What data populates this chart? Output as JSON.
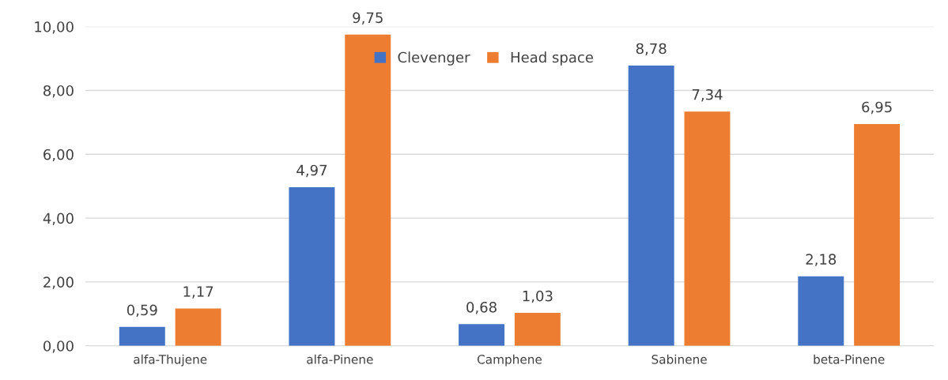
{
  "chart_data": {
    "type": "bar",
    "categories": [
      "alfa-Thujene",
      "alfa-Pinene",
      "Camphene",
      "Sabinene",
      "beta-Pinene"
    ],
    "series": [
      {
        "name": "Clevenger",
        "color": "#4472c4",
        "values": [
          0.59,
          4.97,
          0.68,
          8.78,
          2.18
        ],
        "value_labels": [
          "0,59",
          "4,97",
          "0,68",
          "8,78",
          "2,18"
        ]
      },
      {
        "name": "Head space",
        "color": "#ed7d31",
        "values": [
          1.17,
          9.75,
          1.03,
          7.34,
          6.95
        ],
        "value_labels": [
          "1,17",
          "9,75",
          "1,03",
          "7,34",
          "6,95"
        ]
      }
    ],
    "ylim": [
      0,
      10
    ],
    "yticks": [
      {
        "value": 0,
        "label": "0,00"
      },
      {
        "value": 2,
        "label": "2,00"
      },
      {
        "value": 4,
        "label": "4,00"
      },
      {
        "value": 6,
        "label": "6,00"
      },
      {
        "value": 8,
        "label": "8,00"
      },
      {
        "value": 10,
        "label": "10,00"
      }
    ],
    "grid": "y",
    "legend": "top"
  }
}
